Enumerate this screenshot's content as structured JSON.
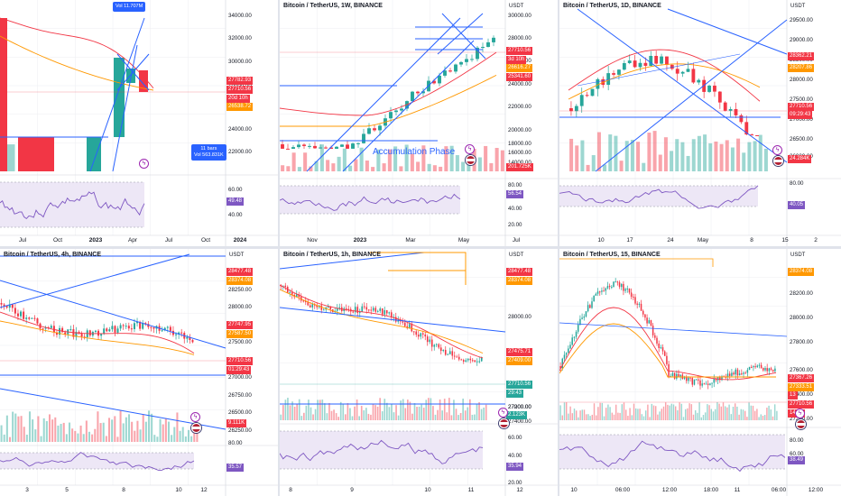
{
  "colors": {
    "up": "#26a69a",
    "down": "#f23645",
    "trend": "#2962ff",
    "ma1": "#f23645",
    "ma2": "#ff9800",
    "rsi": "#7e57c2",
    "rsi_bg": "#ede7f6",
    "grid": "#eceef2"
  },
  "icons": {
    "bolt": "lightning-icon",
    "flag": "us-flag-icon"
  },
  "charts": [
    {
      "id": "p1",
      "title": "",
      "unit": "",
      "y_labels": [
        "34000.00",
        "32000.00",
        "30000.00",
        "28000.00",
        "26000.00",
        "24000.00",
        "22000.00"
      ],
      "tags": [
        {
          "text": "27782.93",
          "color": "#f23645"
        },
        {
          "text": "27710.56",
          "color": "#f23645"
        },
        {
          "text": "20d 10h",
          "color": "#f23645"
        },
        {
          "text": "26538.72",
          "color": "#ff9800"
        }
      ],
      "notes": [
        {
          "text": "Vol 11.707M"
        },
        {
          "text": "11 bars\nVol 563.831K"
        }
      ],
      "rsi_labels": [
        "60.00",
        "40.00"
      ],
      "rsi_tag": "49.48",
      "x_labels": [
        {
          "t": "Jul",
          "b": false
        },
        {
          "t": "Oct",
          "b": false
        },
        {
          "t": "2023",
          "b": true
        },
        {
          "t": "Apr",
          "b": false
        },
        {
          "t": "Jul",
          "b": false
        },
        {
          "t": "Oct",
          "b": false
        },
        {
          "t": "2024",
          "b": true
        }
      ],
      "phase": ""
    },
    {
      "id": "p2",
      "title": "Bitcoin / TetherUS, 1W, BINANCE",
      "unit": "USDT",
      "y_labels": [
        "30000.00",
        "28000.00",
        "26000.00",
        "24000.00",
        "22000.00",
        "20000.00",
        "18000.00",
        "16000.00",
        "14000.00"
      ],
      "tags": [
        {
          "text": "27710.56",
          "color": "#f23645"
        },
        {
          "text": "3d 10h",
          "color": "#f23645"
        },
        {
          "text": "26616.27",
          "color": "#ff9800"
        },
        {
          "text": "25341.60",
          "color": "#f23645"
        },
        {
          "text": "201.725K",
          "color": "#f23645"
        }
      ],
      "notes": [],
      "rsi_labels": [
        "80.00",
        "56.54",
        "40.00",
        "20.00"
      ],
      "rsi_tag": "56.54",
      "x_labels": [
        {
          "t": "Nov",
          "b": false
        },
        {
          "t": "2023",
          "b": true
        },
        {
          "t": "Mar",
          "b": false
        },
        {
          "t": "May",
          "b": false
        },
        {
          "t": "Jul",
          "b": false
        }
      ],
      "phase": "Accumulation Phase"
    },
    {
      "id": "p3",
      "title": "Bitcoin / TetherUS, 1D, BINANCE",
      "unit": "USDT",
      "y_labels": [
        "29500.00",
        "29000.00",
        "28500.00",
        "28000.00",
        "27500.00",
        "27000.00",
        "26500.00",
        "26000.00"
      ],
      "tags": [
        {
          "text": "28362.21",
          "color": "#f23645"
        },
        {
          "text": "28207.86",
          "color": "#ff9800"
        },
        {
          "text": "27710.56",
          "color": "#f23645"
        },
        {
          "text": "09:29:43",
          "color": "#f23645"
        },
        {
          "text": "24.284K",
          "color": "#f23645"
        }
      ],
      "notes": [],
      "rsi_labels": [
        "80.00",
        "40.05"
      ],
      "rsi_tag": "40.05",
      "x_labels": [
        {
          "t": "10",
          "b": false
        },
        {
          "t": "17",
          "b": false
        },
        {
          "t": "24",
          "b": false
        },
        {
          "t": "May",
          "b": false
        },
        {
          "t": "8",
          "b": false
        },
        {
          "t": "15",
          "b": false
        },
        {
          "t": "2",
          "b": false
        }
      ],
      "phase": ""
    },
    {
      "id": "p4",
      "title": "Bitcoin / TetherUS, 4h, BINANCE",
      "unit": "USDT",
      "y_labels": [
        "28250.00",
        "28000.00",
        "27750.00",
        "27500.00",
        "27250.00",
        "27000.00",
        "26750.00",
        "26500.00",
        "26250.00"
      ],
      "tags": [
        {
          "text": "28477.48",
          "color": "#f23645"
        },
        {
          "text": "28374.08",
          "color": "#ff9800"
        },
        {
          "text": "27747.95",
          "color": "#f23645"
        },
        {
          "text": "27587.50",
          "color": "#ff9800"
        },
        {
          "text": "27710.56",
          "color": "#f23645"
        },
        {
          "text": "01:29:43",
          "color": "#f23645"
        },
        {
          "text": "9.111K",
          "color": "#f23645"
        }
      ],
      "notes": [],
      "rsi_labels": [
        "80.00",
        "35.57"
      ],
      "rsi_tag": "35.57",
      "x_labels": [
        {
          "t": "3",
          "b": false
        },
        {
          "t": "5",
          "b": false
        },
        {
          "t": "8",
          "b": false
        },
        {
          "t": "10",
          "b": false
        },
        {
          "t": "12",
          "b": false
        }
      ],
      "phase": ""
    },
    {
      "id": "p5",
      "title": "Bitcoin / TetherUS, 1h, BINANCE",
      "unit": "USDT",
      "y_labels": [
        "28200.00",
        "28000.00",
        "27800.00",
        "27600.00",
        "27400.00",
        "27200.00",
        "27000.00"
      ],
      "tags": [
        {
          "text": "28477.48",
          "color": "#f23645"
        },
        {
          "text": "28374.08",
          "color": "#ff9800"
        },
        {
          "text": "27475.71",
          "color": "#f23645"
        },
        {
          "text": "27409.00",
          "color": "#ff9800"
        },
        {
          "text": "27710.56",
          "color": "#26a69a"
        },
        {
          "text": "29:43",
          "color": "#26a69a"
        },
        {
          "text": "2.123K",
          "color": "#26a69a"
        }
      ],
      "notes": [],
      "rsi_labels": [
        "60.00",
        "40.00",
        "35.94",
        "20.00"
      ],
      "rsi_tag": "35.94",
      "x_labels": [
        {
          "t": "8",
          "b": false
        },
        {
          "t": "9",
          "b": false
        },
        {
          "t": "10",
          "b": false
        },
        {
          "t": "11",
          "b": false
        },
        {
          "t": "12",
          "b": false
        }
      ],
      "phase": ""
    },
    {
      "id": "p6",
      "title": "Bitcoin / TetherUS, 15, BINANCE",
      "unit": "USDT",
      "y_labels": [
        "28200.00",
        "28000.00",
        "27800.00",
        "27600.00",
        "27400.00",
        "27200.00"
      ],
      "tags": [
        {
          "text": "28374.08",
          "color": "#ff9800"
        },
        {
          "text": "27367.26",
          "color": "#f23645"
        },
        {
          "text": "27333.51",
          "color": "#ff9800"
        },
        {
          "text": "13",
          "color": "#f23645"
        },
        {
          "text": "27710.56",
          "color": "#f23645"
        },
        {
          "text": "14:43",
          "color": "#f23645"
        }
      ],
      "notes": [],
      "rsi_labels": [
        "80.00",
        "60.00",
        "40.00",
        "38.49"
      ],
      "rsi_tag": "38.49",
      "x_labels": [
        {
          "t": "10",
          "b": false
        },
        {
          "t": "06:00",
          "b": false
        },
        {
          "t": "12:00",
          "b": false
        },
        {
          "t": "18:00",
          "b": false
        },
        {
          "t": "11",
          "b": false
        },
        {
          "t": "06:00",
          "b": false
        },
        {
          "t": "12:00",
          "b": false
        }
      ],
      "phase": ""
    }
  ]
}
